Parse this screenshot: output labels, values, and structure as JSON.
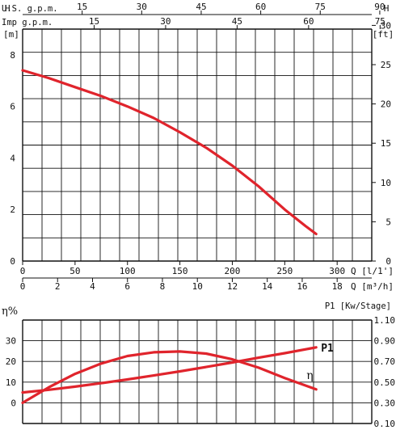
{
  "chart_data": [
    {
      "type": "line",
      "xlabel": "Q [l/1']",
      "xlabel_alt": "Q [m³/h]",
      "ylabel_left": "H\n[m]",
      "ylabel_right": "H\n[ft]",
      "top_axis_1": {
        "label": "U.S. g.p.m.",
        "ticks": [
          "15",
          "30",
          "45",
          "60",
          "75",
          "90"
        ]
      },
      "top_axis_2": {
        "label": "Imp g.p.m.",
        "ticks": [
          "15",
          "30",
          "45",
          "60",
          "75"
        ]
      },
      "x_ticks": [
        "0",
        "50",
        "100",
        "150",
        "200",
        "250",
        "300"
      ],
      "x_ticks_m3h": [
        "0",
        "2",
        "4",
        "6",
        "8",
        "10",
        "12",
        "14",
        "16",
        "18"
      ],
      "y_ticks_m": [
        "0",
        "2",
        "4",
        "6",
        "8"
      ],
      "y_ticks_ft": [
        "0",
        "5",
        "10",
        "15",
        "20",
        "25",
        "30"
      ],
      "xlim": [
        0,
        333
      ],
      "ylim": [
        0,
        9
      ],
      "grid": true,
      "series": [
        {
          "x": [
            0,
            25,
            50,
            75,
            100,
            125,
            150,
            175,
            200,
            225,
            250,
            270,
            280
          ],
          "values": [
            7.4,
            7.1,
            6.75,
            6.4,
            6.0,
            5.55,
            5.0,
            4.4,
            3.7,
            2.9,
            2.0,
            1.35,
            1.05
          ]
        }
      ],
      "colors": {
        "curve": "#e0242c",
        "grid": "#111111"
      }
    },
    {
      "type": "line",
      "ylabel_left": "η%",
      "ylabel_right": "P1 [Kw/Stage]",
      "y_ticks_left": [
        "0",
        "10",
        "20",
        "30"
      ],
      "y_ticks_right": [
        "0.10",
        "0.30",
        "0.50",
        "0.70",
        "0.90",
        "1.10"
      ],
      "xlim": [
        0,
        333
      ],
      "ylim": [
        -10,
        40
      ],
      "grid": true,
      "series": [
        {
          "name": "P1",
          "x": [
            0,
            25,
            50,
            75,
            100,
            125,
            150,
            175,
            200,
            225,
            250,
            280
          ],
          "values": [
            5.0,
            6.3,
            7.8,
            9.5,
            11.3,
            13.2,
            15.2,
            17.3,
            19.5,
            21.8,
            24.0,
            26.8
          ]
        },
        {
          "name": "η",
          "x": [
            0,
            25,
            50,
            75,
            100,
            125,
            150,
            175,
            200,
            225,
            250,
            280
          ],
          "values": [
            0,
            7.5,
            14,
            19,
            22.6,
            24.4,
            24.8,
            23.8,
            21.0,
            17.0,
            12.0,
            6.5
          ]
        }
      ],
      "colors": {
        "curve": "#e0242c",
        "grid": "#111111"
      }
    }
  ]
}
